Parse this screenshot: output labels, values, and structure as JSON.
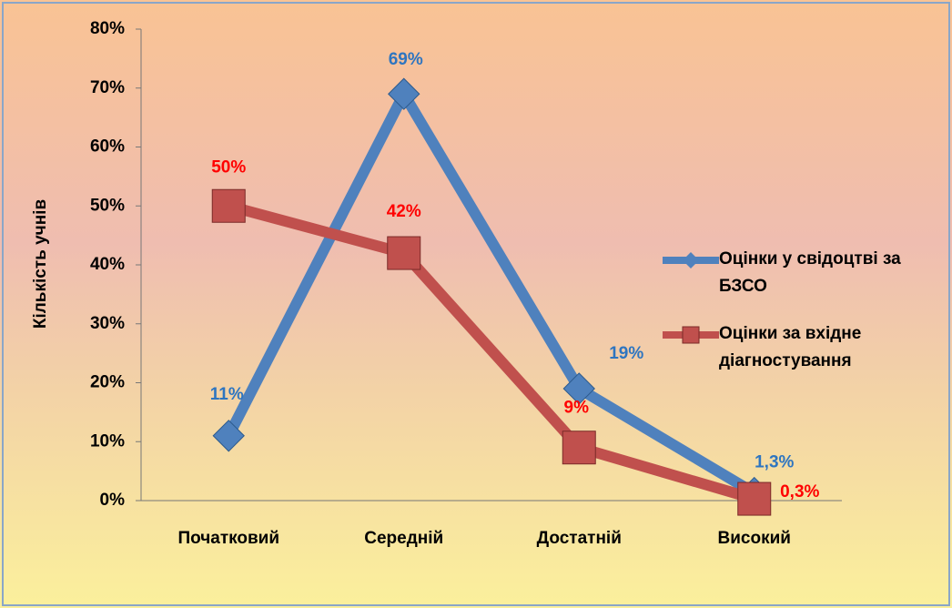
{
  "chart_data": {
    "type": "line",
    "y_label": "Кількість учнів",
    "categories": [
      "Початковий",
      "Середній",
      "Достатній",
      "Високий"
    ],
    "series": [
      {
        "name": "Оцінки у свідоцтві за БЗСО",
        "color": "#4f81bd",
        "label_color": "#2e75c0",
        "marker": "diamond",
        "values": [
          11,
          69,
          19,
          1.3
        ],
        "value_labels": [
          "11%",
          "69%",
          "19%",
          "1,3%"
        ]
      },
      {
        "name": "Оцінки за вхідне діагностування",
        "color": "#c0504d",
        "label_color": "#ff0000",
        "marker": "square",
        "values": [
          50,
          42,
          9,
          0.3
        ],
        "value_labels": [
          "50%",
          "42%",
          "9%",
          "0,3%"
        ]
      }
    ],
    "ylim": [
      0,
      80
    ],
    "yticks": [
      {
        "value": 0,
        "label": "0%"
      },
      {
        "value": 10,
        "label": "10%"
      },
      {
        "value": 20,
        "label": "20%"
      },
      {
        "value": 30,
        "label": "30%"
      },
      {
        "value": 40,
        "label": "40%"
      },
      {
        "value": 50,
        "label": "50%"
      },
      {
        "value": 60,
        "label": "60%"
      },
      {
        "value": 70,
        "label": "70%"
      },
      {
        "value": 80,
        "label": "80%"
      }
    ],
    "legend": "right"
  }
}
